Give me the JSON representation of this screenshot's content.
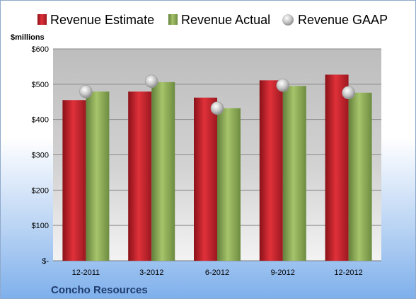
{
  "chart_data": {
    "type": "bar",
    "ylabel": "$millions",
    "ylim": [
      0,
      600
    ],
    "yticks": [
      0,
      100,
      200,
      300,
      400,
      500,
      600
    ],
    "ytick_labels": [
      "$-",
      "$100",
      "$200",
      "$300",
      "$400",
      "$500",
      "$600"
    ],
    "categories": [
      "12-2011",
      "3-2012",
      "6-2012",
      "9-2012",
      "12-2012"
    ],
    "series": [
      {
        "name": "Revenue Estimate",
        "kind": "bar",
        "color": "#c0202a",
        "values": [
          455,
          479,
          462,
          511,
          527
        ]
      },
      {
        "name": "Revenue Actual",
        "kind": "bar",
        "color": "#8cab55",
        "values": [
          479,
          506,
          432,
          495,
          476
        ]
      },
      {
        "name": "Revenue GAAP",
        "kind": "marker",
        "color": "#c8c8c8",
        "values": [
          479,
          508,
          432,
          497,
          476
        ]
      }
    ],
    "grid": true,
    "legend": "top",
    "footer": "Concho Resources"
  }
}
